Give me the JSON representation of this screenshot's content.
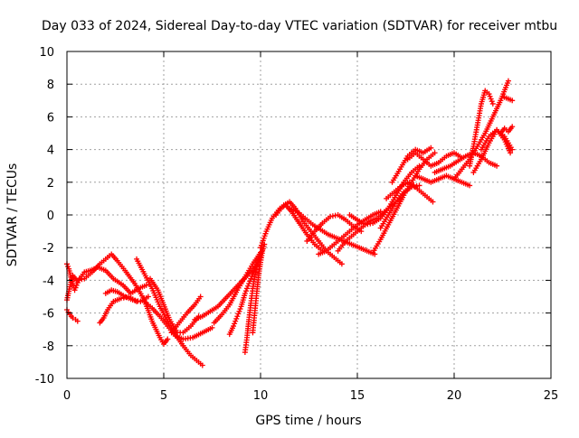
{
  "chart_data": {
    "type": "scatter",
    "title": "Day 033 of 2024, Sidereal Day-to-day VTEC variation (SDTVAR) for receiver mtbu",
    "xlabel": "GPS time / hours",
    "ylabel": "SDTVAR / TECUs",
    "xlim": [
      0,
      25
    ],
    "ylim": [
      -10,
      10
    ],
    "x_ticks": [
      "0",
      "5",
      "10",
      "15",
      "20",
      "25"
    ],
    "y_ticks": [
      "-10",
      "-8",
      "-6",
      "-4",
      "-2",
      "0",
      "2",
      "4",
      "6",
      "8",
      "10"
    ],
    "grid": true,
    "marker": "plus",
    "color": "#ff0000",
    "series": [
      {
        "x": [
          0.0,
          0.15,
          0.3,
          0.5,
          0.9,
          1.3,
          1.7,
          2.0,
          2.3,
          2.6,
          3.0,
          3.5,
          4.0,
          4.4,
          4.8,
          5.0,
          5.2
        ],
        "y": [
          -5.2,
          -4.4,
          -3.7,
          -4.0,
          -3.9,
          -3.5,
          -3.0,
          -2.7,
          -2.4,
          -2.8,
          -3.4,
          -4.2,
          -5.2,
          -6.5,
          -7.5,
          -7.9,
          -7.6
        ]
      },
      {
        "x": [
          0.0,
          0.1,
          0.2,
          0.4,
          0.6,
          0.9,
          1.2,
          1.6,
          2.0,
          2.4,
          2.9,
          3.3,
          3.7,
          4.1
        ],
        "y": [
          -3.0,
          -3.3,
          -3.8,
          -4.6,
          -4.0,
          -3.5,
          -3.4,
          -3.2,
          -3.4,
          -3.9,
          -4.3,
          -4.8,
          -4.5,
          -4.3
        ]
      },
      {
        "x": [
          0.0,
          0.15,
          0.3,
          0.45,
          0.55
        ],
        "y": [
          -5.8,
          -6.1,
          -6.3,
          -6.4,
          -6.5
        ]
      },
      {
        "x": [
          1.7,
          1.9,
          2.1,
          2.4,
          2.8,
          3.2,
          3.6
        ],
        "y": [
          -6.6,
          -6.3,
          -5.8,
          -5.3,
          -5.1,
          -5.0,
          -5.3
        ]
      },
      {
        "x": [
          2.0,
          2.3,
          2.6,
          3.0,
          3.4,
          3.8,
          4.2
        ],
        "y": [
          -4.8,
          -4.6,
          -4.7,
          -5.0,
          -5.2,
          -5.3,
          -5.0
        ]
      },
      {
        "x": [
          3.6,
          4.0,
          4.4,
          4.8,
          5.2,
          5.6,
          6.0,
          6.4,
          6.8,
          7.0
        ],
        "y": [
          -2.7,
          -3.6,
          -4.5,
          -5.6,
          -6.5,
          -7.3,
          -8.0,
          -8.6,
          -9.0,
          -9.2
        ]
      },
      {
        "x": [
          4.0,
          4.4,
          4.8,
          5.2,
          5.6,
          6.0,
          6.5,
          7.0,
          7.5
        ],
        "y": [
          -5.3,
          -5.7,
          -6.2,
          -6.8,
          -7.4,
          -7.6,
          -7.5,
          -7.2,
          -6.9
        ]
      },
      {
        "x": [
          4.3,
          4.7,
          5.0,
          5.3,
          5.7,
          6.0,
          6.4,
          6.8
        ],
        "y": [
          -3.9,
          -4.6,
          -5.5,
          -6.4,
          -7.2,
          -7.2,
          -6.8,
          -6.2
        ]
      },
      {
        "x": [
          5.4,
          5.8,
          6.2,
          6.6,
          6.9
        ],
        "y": [
          -7.2,
          -6.6,
          -6.0,
          -5.5,
          -5.0
        ]
      },
      {
        "x": [
          6.6,
          7.0,
          7.4,
          7.8,
          8.2,
          8.6,
          9.0,
          9.4,
          9.8
        ],
        "y": [
          -6.4,
          -6.2,
          -5.9,
          -5.6,
          -5.1,
          -4.6,
          -4.1,
          -3.6,
          -3.1
        ]
      },
      {
        "x": [
          7.6,
          8.0,
          8.4,
          8.8,
          9.2,
          9.6,
          10.0
        ],
        "y": [
          -6.6,
          -6.1,
          -5.5,
          -4.6,
          -3.8,
          -3.0,
          -2.3
        ]
      },
      {
        "x": [
          8.4,
          8.6,
          8.8,
          9.0,
          9.2,
          9.4,
          9.6,
          9.8,
          10.0
        ],
        "y": [
          -7.3,
          -6.8,
          -6.2,
          -5.6,
          -4.8,
          -4.2,
          -3.6,
          -3.0,
          -2.6
        ]
      },
      {
        "x": [
          9.2,
          9.3,
          9.4,
          9.5,
          9.6,
          9.7,
          9.8,
          9.9,
          10.0,
          10.1
        ],
        "y": [
          -8.4,
          -7.5,
          -6.4,
          -5.4,
          -4.5,
          -3.8,
          -3.2,
          -2.8,
          -2.4,
          -2.1
        ]
      },
      {
        "x": [
          9.6,
          9.7,
          9.8,
          9.9,
          10.0,
          10.1,
          10.2
        ],
        "y": [
          -7.2,
          -6.0,
          -4.8,
          -3.7,
          -2.9,
          -2.2,
          -1.8
        ]
      },
      {
        "x": [
          10.0,
          10.3,
          10.6,
          11.0,
          11.3,
          11.6,
          12.0,
          12.4,
          12.8,
          13.2
        ],
        "y": [
          -2.0,
          -1.0,
          -0.2,
          0.4,
          0.6,
          0.2,
          -0.5,
          -1.2,
          -1.8,
          -2.2
        ]
      },
      {
        "x": [
          10.8,
          11.2,
          11.5,
          11.8,
          12.2,
          12.6,
          13.0,
          13.4,
          13.8,
          14.2
        ],
        "y": [
          0.0,
          0.6,
          0.8,
          0.4,
          -0.4,
          -1.0,
          -1.6,
          -2.2,
          -2.6,
          -3.0
        ]
      },
      {
        "x": [
          11.5,
          11.9,
          12.3,
          12.7,
          13.1,
          13.5,
          13.9,
          14.3,
          14.7,
          15.1,
          15.5,
          15.9
        ],
        "y": [
          0.4,
          0.2,
          -0.2,
          -0.6,
          -0.9,
          -1.2,
          -1.4,
          -1.6,
          -1.8,
          -2.0,
          -2.2,
          -2.4
        ]
      },
      {
        "x": [
          12.4,
          12.8,
          13.2,
          13.6,
          14.0,
          14.4,
          14.8,
          15.2
        ],
        "y": [
          -1.6,
          -1.0,
          -0.5,
          -0.1,
          0.0,
          -0.3,
          -0.7,
          -1.0
        ]
      },
      {
        "x": [
          13.0,
          13.4,
          13.8,
          14.2,
          14.6,
          15.0,
          15.4,
          15.8,
          16.2
        ],
        "y": [
          -2.4,
          -2.2,
          -1.8,
          -1.4,
          -1.0,
          -0.6,
          -0.3,
          0.0,
          0.2
        ]
      },
      {
        "x": [
          14.0,
          14.4,
          14.8,
          15.2,
          15.6,
          16.0,
          16.4,
          16.8,
          17.2
        ],
        "y": [
          -2.2,
          -1.6,
          -1.2,
          -0.8,
          -0.4,
          -0.2,
          0.2,
          0.6,
          1.0
        ]
      },
      {
        "x": [
          14.6,
          15.0,
          15.4,
          15.8,
          16.2,
          16.6,
          17.0,
          17.4,
          17.8,
          18.2
        ],
        "y": [
          0.0,
          -0.3,
          -0.6,
          -0.5,
          -0.2,
          0.4,
          1.2,
          2.0,
          2.6,
          3.0
        ]
      },
      {
        "x": [
          15.8,
          16.2,
          16.6,
          17.0,
          17.4,
          17.8,
          18.2,
          18.6,
          19.0
        ],
        "y": [
          -2.3,
          -1.5,
          -0.6,
          0.3,
          1.2,
          2.0,
          2.8,
          3.4,
          3.8
        ]
      },
      {
        "x": [
          16.2,
          16.6,
          17.0,
          17.4,
          17.8,
          18.2
        ],
        "y": [
          -0.8,
          0.0,
          0.8,
          1.4,
          1.7,
          1.8
        ]
      },
      {
        "x": [
          16.5,
          16.9,
          17.3,
          17.7,
          18.1,
          18.5,
          18.9
        ],
        "y": [
          1.0,
          1.4,
          1.8,
          2.0,
          1.6,
          1.2,
          0.8
        ]
      },
      {
        "x": [
          16.8,
          17.2,
          17.6,
          18.0,
          18.4,
          18.8
        ],
        "y": [
          2.0,
          2.8,
          3.6,
          4.0,
          3.8,
          4.1
        ]
      },
      {
        "x": [
          17.6,
          18.0,
          18.4,
          18.8,
          19.2,
          19.6,
          20.0,
          20.4
        ],
        "y": [
          3.4,
          3.8,
          3.4,
          3.0,
          3.2,
          3.6,
          3.8,
          3.5
        ]
      },
      {
        "x": [
          18.0,
          18.4,
          18.8,
          19.2,
          19.6,
          20.0,
          20.4,
          20.8
        ],
        "y": [
          2.4,
          2.2,
          2.0,
          2.2,
          2.4,
          2.2,
          2.0,
          1.8
        ]
      },
      {
        "x": [
          19.0,
          19.4,
          19.8,
          20.2,
          20.6,
          21.0,
          21.4,
          21.8,
          22.2
        ],
        "y": [
          2.6,
          2.8,
          3.0,
          3.3,
          3.6,
          3.8,
          3.6,
          3.2,
          3.0
        ]
      },
      {
        "x": [
          20.0,
          20.4,
          20.8,
          21.2,
          21.6,
          22.0,
          22.4,
          22.8
        ],
        "y": [
          2.2,
          2.8,
          3.4,
          4.2,
          5.0,
          6.0,
          7.0,
          8.2
        ]
      },
      {
        "x": [
          20.8,
          21.0,
          21.2,
          21.4,
          21.6,
          21.8,
          22.0
        ],
        "y": [
          3.0,
          4.2,
          5.5,
          6.8,
          7.6,
          7.4,
          6.8
        ]
      },
      {
        "x": [
          21.0,
          21.4,
          21.8,
          22.2,
          22.6,
          23.0
        ],
        "y": [
          2.6,
          3.4,
          4.4,
          5.2,
          4.8,
          4.0
        ]
      },
      {
        "x": [
          21.4,
          21.8,
          22.2,
          22.6,
          22.9
        ],
        "y": [
          4.0,
          4.8,
          5.2,
          4.6,
          3.8
        ]
      },
      {
        "x": [
          22.4,
          22.6,
          22.8,
          23.0
        ],
        "y": [
          5.0,
          5.3,
          5.1,
          5.4
        ]
      },
      {
        "x": [
          22.6,
          22.8,
          23.0
        ],
        "y": [
          7.2,
          7.1,
          7.0
        ]
      }
    ]
  }
}
